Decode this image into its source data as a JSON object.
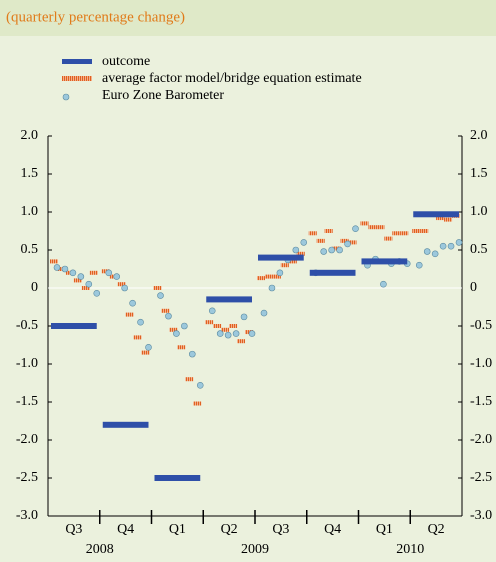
{
  "chart_data": {
    "type": "nowcast",
    "subtitle": "(quarterly percentage change)",
    "categories": [
      "Q3",
      "Q4",
      "Q1",
      "Q2",
      "Q3",
      "Q4",
      "Q1",
      "Q2"
    ],
    "years": [
      "2008",
      "2009",
      "2010"
    ],
    "ylim": [
      -3,
      2
    ],
    "yticks": [
      {
        "value": -3,
        "label": "-3.0"
      },
      {
        "value": -2.5,
        "label": "-2.5"
      },
      {
        "value": -2,
        "label": "-2.0"
      },
      {
        "value": -1.5,
        "label": "-1.5"
      },
      {
        "value": -1,
        "label": "-1.0"
      },
      -0.5,
      0,
      0.5,
      {
        "value": 1,
        "label": "1.0"
      },
      1.5,
      {
        "value": 2,
        "label": "2.0"
      }
    ],
    "series": [
      {
        "name": "outcome",
        "color": "#2e4fa8",
        "values": [
          -0.5,
          -1.8,
          -2.5,
          -0.15,
          0.4,
          0.2,
          0.35,
          0.97
        ]
      },
      {
        "name": "average factor model/bridge equation estimate",
        "color": "#e06020",
        "values": [
          [
            0.35,
            0.25,
            0.2,
            0.1,
            0.0,
            0.2
          ],
          [
            0.22,
            0.15,
            0.05,
            -0.35,
            -0.65,
            -0.85
          ],
          [
            0.0,
            -0.3,
            -0.55,
            -0.78,
            -1.2,
            -1.52
          ],
          [
            -0.45,
            -0.5,
            -0.55,
            -0.5,
            -0.7,
            -0.58
          ],
          [
            0.13,
            0.15,
            0.15,
            0.3,
            0.35,
            0.45
          ],
          [
            0.72,
            0.62,
            0.75,
            0.52,
            0.62,
            0.6
          ],
          [
            0.85,
            0.8,
            0.8,
            0.65,
            0.72,
            0.72
          ],
          [
            0.75,
            0.75,
            0.98,
            0.92,
            0.9,
            0.95
          ]
        ]
      },
      {
        "name": "Euro Zone Barometer",
        "color": "#9cc8dc",
        "values": [
          [
            0.27,
            0.25,
            0.2,
            0.15,
            0.05,
            -0.07
          ],
          [
            0.2,
            0.15,
            0.0,
            -0.2,
            -0.45,
            -0.78
          ],
          [
            -0.1,
            -0.37,
            -0.6,
            -0.5,
            -0.87,
            -1.28
          ],
          [
            -0.3,
            -0.6,
            -0.62,
            -0.6,
            -0.38,
            -0.6
          ],
          [
            -0.33,
            0.0,
            0.2,
            0.37,
            0.5,
            0.6
          ],
          [
            0.2,
            0.48,
            0.5,
            0.5,
            0.58,
            0.78
          ],
          [
            0.3,
            0.38,
            0.05,
            0.32,
            0.35,
            0.32
          ],
          [
            0.3,
            0.48,
            0.45,
            0.55,
            0.55,
            0.6
          ]
        ]
      }
    ]
  }
}
